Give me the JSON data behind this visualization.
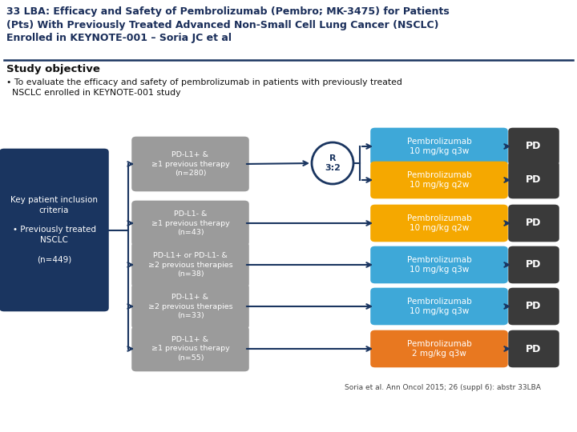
{
  "bg_color": "#ffffff",
  "title_color": "#1a2e5a",
  "title_text": "33 LBA: Efficacy and Safety of Pembrolizumab (Pembro; MK-3475) for Patients\n(Pts) With Previously Treated Advanced Non-Small Cell Lung Cancer (NSCLC)\nEnrolled in KEYNOTE-001 – Soria JC et al",
  "section_header": "Study objective",
  "bullet_text": "To evaluate the efficacy and safety of pembrolizumab in patients with previously treated\n  NSCLC enrolled in KEYNOTE-001 study",
  "left_box_text": "Key patient inclusion\ncriteria\n\n• Previously treated\nNSCLC\n\n(n=449)",
  "left_box_color": "#1a3560",
  "left_box_text_color": "#ffffff",
  "gray_box_color": "#9b9b9b",
  "gray_box_text_color": "#ffffff",
  "dark_box_color": "#3a3a3a",
  "arrow_color": "#1a3560",
  "r32_circle_color": "#ffffff",
  "r32_border_color": "#1a3560",
  "gray_boxes": [
    "PD-L1+ &\n≥1 previous therapy\n(n=280)",
    "PD-L1- &\n≥1 previous therapy\n(n=43)",
    "PD-L1+ or PD-L1- &\n≥2 previous therapies\n(n=38)",
    "PD-L1+ &\n≥2 previous therapies\n(n=33)",
    "PD-L1+ &\n≥1 previous therapy\n(n=55)"
  ],
  "treatment_boxes": [
    {
      "text": "Pembrolizumab\n10 mg/kg q3w",
      "color": "#3ea8d8"
    },
    {
      "text": "Pembrolizumab\n10 mg/kg q2w",
      "color": "#f5a800"
    },
    {
      "text": "Pembrolizumab\n10 mg/kg q2w",
      "color": "#f5a800"
    },
    {
      "text": "Pembrolizumab\n10 mg/kg q3w",
      "color": "#3ea8d8"
    },
    {
      "text": "Pembrolizumab\n10 mg/kg q3w",
      "color": "#3ea8d8"
    },
    {
      "text": "Pembrolizumab\n2 mg/kg q3w",
      "color": "#e87820"
    }
  ],
  "citation": "Soria et al. Ann Oncol 2015; 26 (suppl 6): abstr 33LBA",
  "figw": 7.2,
  "figh": 5.4,
  "dpi": 100
}
